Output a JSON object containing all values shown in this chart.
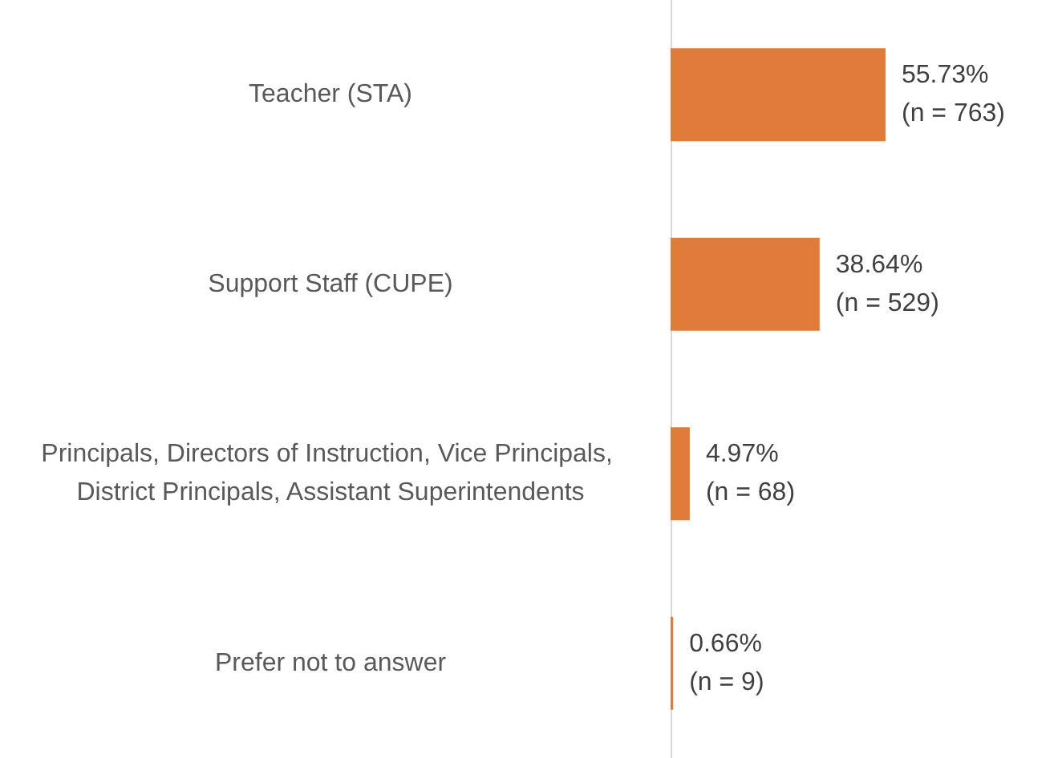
{
  "chart_data": {
    "type": "bar",
    "orientation": "horizontal",
    "categories": [
      "Teacher (STA)",
      "Support Staff (CUPE)",
      "Principals, Directors of Instruction, Vice Principals, District Principals, Assistant Superintendents",
      "Prefer not to answer"
    ],
    "values": [
      55.73,
      38.64,
      4.97,
      0.66
    ],
    "value_labels": [
      "55.73%\n(n = 763)",
      "38.64%\n(n = 529)",
      "4.97%\n(n = 68)",
      "0.66%\n(n = 9)"
    ],
    "color": "#e07b39",
    "grid": false
  }
}
